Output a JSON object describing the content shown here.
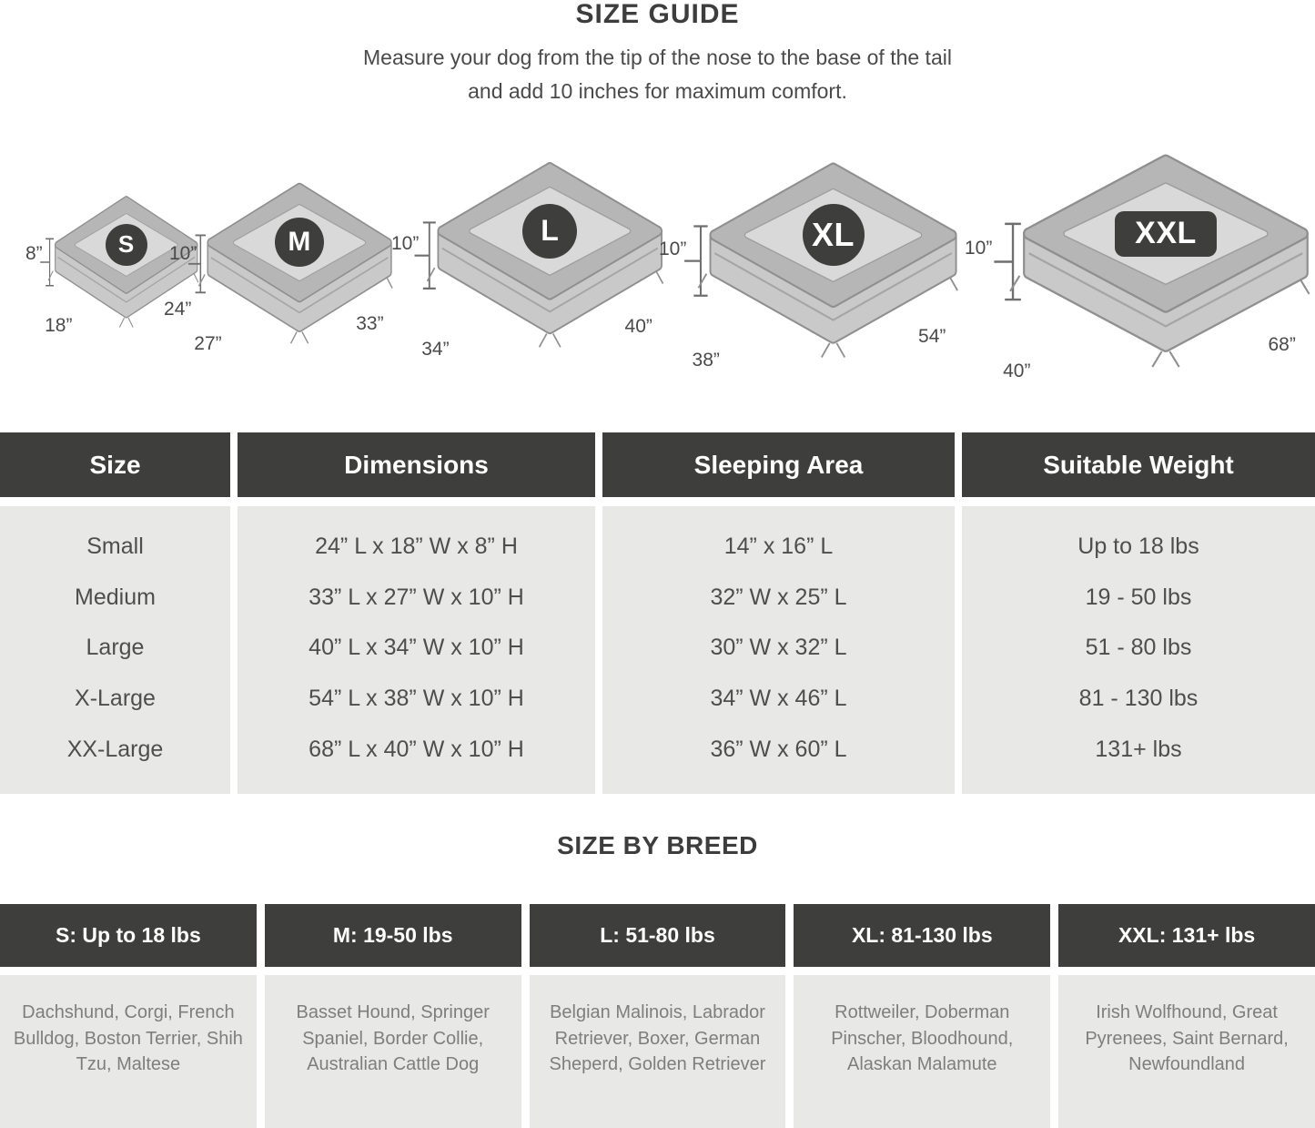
{
  "header": {
    "title": "SIZE GUIDE",
    "subtitle_line1": "Measure your dog from the tip of the nose to the base of the tail",
    "subtitle_line2": "and add 10 inches for maximum comfort."
  },
  "beds": [
    {
      "label": "S",
      "height": "8”",
      "width": "18”",
      "length": "24”"
    },
    {
      "label": "M",
      "height": "10”",
      "width": "27”",
      "length": "33”"
    },
    {
      "label": "L",
      "height": "10”",
      "width": "34”",
      "length": "40”"
    },
    {
      "label": "XL",
      "height": "10”",
      "width": "38”",
      "length": "54”"
    },
    {
      "label": "XXL",
      "height": "10”",
      "width": "40”",
      "length": "68”"
    }
  ],
  "size_table": {
    "columns": [
      "Size",
      "Dimensions",
      "Sleeping Area",
      "Suitable Weight"
    ],
    "rows": [
      [
        "Small",
        "24” L x 18” W x 8” H",
        "14” x 16” L",
        "Up to 18 lbs"
      ],
      [
        "Medium",
        "33” L x 27” W x 10” H",
        "32” W x 25” L",
        "19 - 50 lbs"
      ],
      [
        "Large",
        "40” L x 34” W x 10” H",
        "30” W x 32” L",
        "51 - 80 lbs"
      ],
      [
        "X-Large",
        "54” L x 38” W x 10” H",
        "34” W x 46” L",
        "81 - 130 lbs"
      ],
      [
        "XX-Large",
        "68” L x 40” W x 10” H",
        "36” W x 60” L",
        "131+ lbs"
      ]
    ]
  },
  "breed_section": {
    "title": "SIZE BY BREED",
    "columns": [
      {
        "header": "S: Up to 18 lbs",
        "breeds": "Dachshund, Corgi, French Bulldog, Boston Terrier, Shih Tzu, Maltese"
      },
      {
        "header": "M: 19-50 lbs",
        "breeds": "Basset Hound, Springer Spaniel, Border Collie, Australian Cattle Dog"
      },
      {
        "header": "L: 51-80 lbs",
        "breeds": "Belgian Malinois, Labrador Retriever, Boxer, German Sheperd, Golden Retriever"
      },
      {
        "header": "XL: 81-130 lbs",
        "breeds": "Rottweiler, Doberman Pinscher, Bloodhound, Alaskan Malamute"
      },
      {
        "header": "XXL: 131+ lbs",
        "breeds": "Irish Wolfhound, Great Pyrenees, Saint Bernard, Newfoundland"
      }
    ]
  },
  "colors": {
    "dark": "#3e3e3c",
    "panel": "#e8e8e7",
    "bed_bolster": "#b6b6b6",
    "bed_pad": "#d9d9d9",
    "bed_outline": "#8f8f8f",
    "body_text": "#4e4e4e",
    "breed_text": "#7e7e7e",
    "header_text_on_dark": "#ffffff"
  }
}
